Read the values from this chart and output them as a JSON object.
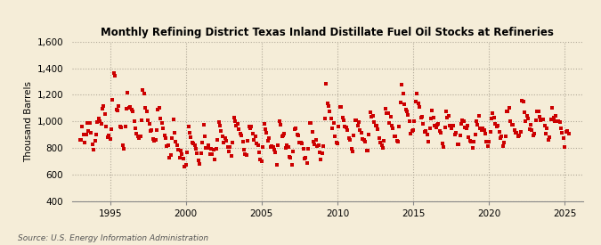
{
  "title": "Monthly Refining District Texas Inland Distillate Fuel Oil Stocks at Refineries",
  "ylabel": "Thousand Barrels",
  "source": "Source: U.S. Energy Information Administration",
  "background_color": "#F5EDD8",
  "plot_bg_color": "#F5EDD8",
  "marker_color": "#CC0000",
  "ylim": [
    400,
    1600
  ],
  "yticks": [
    400,
    600,
    800,
    1000,
    1200,
    1400,
    1600
  ],
  "xlim_start": 1992.5,
  "xlim_end": 2026.2,
  "xticks": [
    1995,
    2000,
    2005,
    2010,
    2015,
    2020,
    2025
  ],
  "start_year": 1993,
  "start_month": 1,
  "values": [
    820,
    870,
    960,
    890,
    860,
    900,
    990,
    970,
    960,
    900,
    840,
    790,
    840,
    910,
    1000,
    1060,
    990,
    980,
    1090,
    1150,
    1010,
    960,
    890,
    840,
    870,
    980,
    1170,
    1420,
    1320,
    1100,
    1100,
    1090,
    1000,
    940,
    870,
    810,
    990,
    1060,
    1170,
    1110,
    1090,
    1090,
    1060,
    1020,
    990,
    950,
    880,
    820,
    880,
    1020,
    1190,
    1200,
    1100,
    1070,
    1010,
    990,
    960,
    920,
    870,
    820,
    870,
    980,
    1090,
    1060,
    1030,
    1010,
    980,
    920,
    880,
    840,
    780,
    730,
    740,
    840,
    980,
    920,
    840,
    800,
    790,
    770,
    760,
    730,
    710,
    680,
    680,
    780,
    970,
    880,
    840,
    820,
    820,
    800,
    790,
    760,
    720,
    680,
    700,
    820,
    980,
    900,
    820,
    790,
    810,
    790,
    780,
    770,
    750,
    710,
    750,
    870,
    1000,
    960,
    900,
    870,
    870,
    870,
    850,
    820,
    790,
    760,
    750,
    860,
    1010,
    1000,
    970,
    960,
    930,
    900,
    870,
    840,
    800,
    760,
    760,
    850,
    990,
    990,
    960,
    940,
    910,
    880,
    850,
    810,
    780,
    740,
    730,
    820,
    990,
    960,
    920,
    890,
    870,
    850,
    820,
    790,
    760,
    720,
    710,
    800,
    970,
    950,
    910,
    880,
    860,
    840,
    810,
    780,
    750,
    710,
    700,
    790,
    960,
    940,
    900,
    870,
    860,
    840,
    810,
    780,
    750,
    710,
    700,
    780,
    980,
    960,
    920,
    890,
    860,
    840,
    820,
    790,
    760,
    730,
    730,
    830,
    1070,
    1230,
    1180,
    1100,
    1050,
    1020,
    990,
    960,
    920,
    870,
    840,
    940,
    1100,
    1090,
    1040,
    1010,
    990,
    960,
    920,
    880,
    850,
    810,
    790,
    890,
    1010,
    990,
    960,
    950,
    940,
    920,
    890,
    860,
    830,
    800,
    780,
    880,
    1070,
    1050,
    1020,
    990,
    960,
    940,
    910,
    880,
    850,
    810,
    800,
    900,
    1060,
    1060,
    1040,
    1020,
    1000,
    980,
    950,
    920,
    890,
    860,
    850,
    950,
    1140,
    1250,
    1220,
    1150,
    1090,
    1060,
    1020,
    980,
    950,
    920,
    900,
    1000,
    1160,
    1200,
    1150,
    1090,
    1030,
    1000,
    970,
    940,
    910,
    880,
    860,
    960,
    1080,
    1060,
    1040,
    1020,
    1000,
    980,
    960,
    930,
    900,
    860,
    840,
    930,
    1060,
    1030,
    1010,
    990,
    960,
    940,
    920,
    900,
    870,
    840,
    820,
    900,
    1020,
    1000,
    980,
    960,
    950,
    930,
    910,
    890,
    860,
    830,
    810,
    890,
    1020,
    990,
    970,
    960,
    950,
    940,
    920,
    900,
    870,
    840,
    830,
    920,
    1060,
    1030,
    1010,
    990,
    970,
    960,
    940,
    910,
    880,
    850,
    830,
    920,
    1080,
    1080,
    1060,
    1030,
    1010,
    990,
    960,
    930,
    900,
    870,
    850,
    940,
    1090,
    1100,
    1070,
    1060,
    1040,
    1020,
    1000,
    970,
    940,
    910,
    890,
    980,
    1090,
    1070,
    1050,
    1030,
    1010,
    1000,
    980,
    960,
    930,
    900,
    880,
    970,
    1100,
    1060,
    1040,
    1010,
    1000,
    990,
    970,
    950,
    920,
    900,
    880,
    960,
    930,
    910
  ]
}
